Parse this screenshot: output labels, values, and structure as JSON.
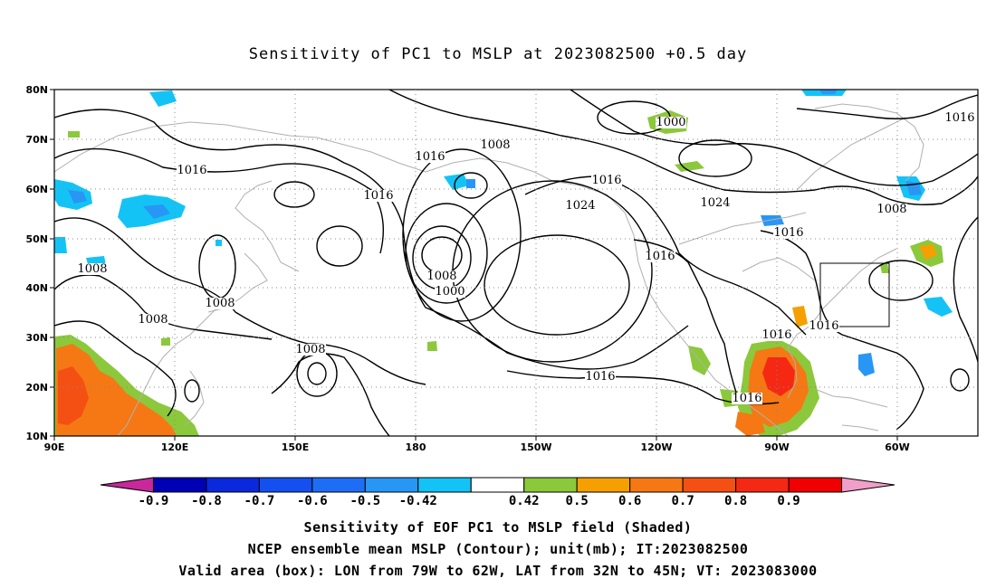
{
  "title": "Sensitivity of PC1 to MSLP at 2023082500 +0.5 day",
  "lat_labels": [
    "80N",
    "70N",
    "60N",
    "50N",
    "40N",
    "30N",
    "20N",
    "10N"
  ],
  "lon_labels": [
    "90E",
    "120E",
    "150E",
    "180",
    "150W",
    "120W",
    "90W",
    "60W"
  ],
  "colorbar": {
    "tick_labels": [
      "-0.9",
      "-0.8",
      "-0.7",
      "-0.6",
      "-0.5",
      "-0.42",
      "0.42",
      "0.5",
      "0.6",
      "0.7",
      "0.8",
      "0.9"
    ],
    "colors": [
      "#c8289c",
      "#0000b4",
      "#0a28dc",
      "#1450f0",
      "#1e6ef5",
      "#2896f5",
      "#14c3f5",
      "#ffffff",
      "#8cc83c",
      "#f5a000",
      "#f57814",
      "#f55014",
      "#f52814",
      "#f00000",
      "#f0a0c8"
    ]
  },
  "contour_labels": [
    "1000",
    "1016",
    "1008",
    "1016",
    "1016",
    "1016",
    "1024",
    "1024",
    "1016",
    "1008",
    "1016",
    "1016",
    "1008",
    "1000",
    "1008",
    "1008",
    "1008",
    "1008",
    "1016",
    "1016",
    "1016",
    "1016"
  ],
  "footer": {
    "line1": "Sensitivity of EOF PC1 to MSLP field (Shaded)",
    "line2": "NCEP ensemble mean MSLP (Contour); unit(mb); IT:2023082500",
    "line3": "Valid area (box): LON from 79W to 62W, LAT from 32N to 45N; VT: 2023083000"
  }
}
